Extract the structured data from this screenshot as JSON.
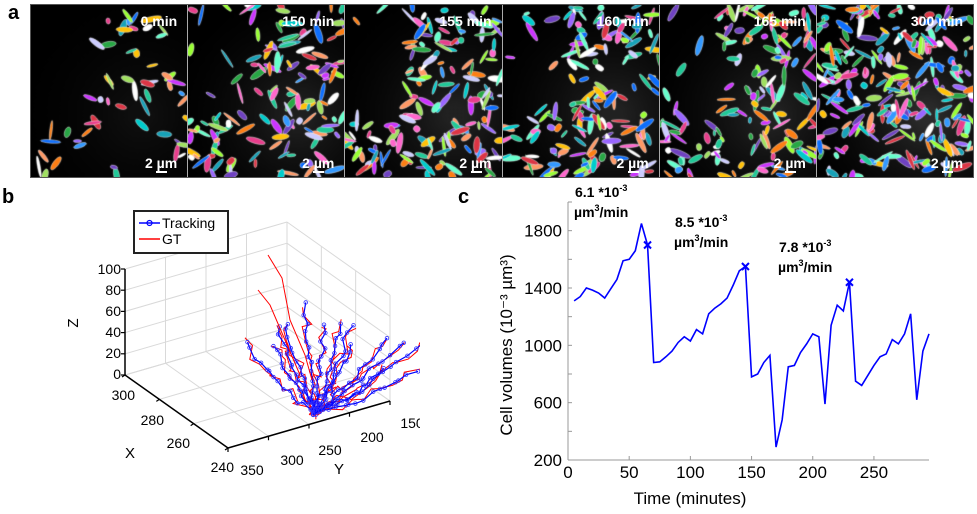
{
  "panels": {
    "a": {
      "letter": "a"
    },
    "b": {
      "letter": "b"
    },
    "c": {
      "letter": "c"
    }
  },
  "frames": [
    {
      "time": "0 min",
      "scale": "2 µm",
      "density": 0.35
    },
    {
      "time": "150 min",
      "scale": "2 µm",
      "density": 0.75
    },
    {
      "time": "155 min",
      "scale": "2 µm",
      "density": 0.78
    },
    {
      "time": "160 min",
      "scale": "2 µm",
      "density": 0.8
    },
    {
      "time": "165 min",
      "scale": "2 µm",
      "density": 0.8
    },
    {
      "time": "300 min",
      "scale": "2 µm",
      "density": 1.0
    }
  ],
  "tracking_plot": {
    "legend": [
      {
        "label": "Tracking",
        "color": "#0000ff",
        "marker": "circle"
      },
      {
        "label": "GT",
        "color": "#ff0000",
        "marker": "none"
      }
    ],
    "z_label": "Z",
    "x_label": "X",
    "y_label": "Y",
    "z_ticks": [
      "100",
      "80",
      "60",
      "40",
      "20",
      "0"
    ],
    "x_ticks": [
      "300",
      "280",
      "260",
      "240"
    ],
    "y_ticks": [
      "350",
      "300",
      "250",
      "200",
      "150"
    ]
  },
  "chart_data": {
    "type": "line",
    "title": "",
    "xlabel": "Time (minutes)",
    "ylabel": "Cell volumes (10⁻³ µm³)",
    "xlim": [
      0,
      295
    ],
    "ylim": [
      200,
      2000
    ],
    "xticks": [
      0,
      50,
      100,
      150,
      200,
      250
    ],
    "yticks": [
      200,
      600,
      1000,
      1400,
      1800
    ],
    "grid": false,
    "color": "#0000ff",
    "series": [
      {
        "name": "Cell volume",
        "x": [
          5,
          10,
          15,
          20,
          25,
          30,
          35,
          40,
          45,
          50,
          55,
          60,
          65,
          70,
          75,
          80,
          85,
          90,
          95,
          100,
          105,
          110,
          115,
          120,
          125,
          130,
          135,
          140,
          145,
          150,
          155,
          160,
          165,
          170,
          175,
          180,
          185,
          190,
          195,
          200,
          205,
          210,
          215,
          220,
          225,
          230,
          235,
          240,
          245,
          250,
          255,
          260,
          265,
          270,
          275,
          280,
          285,
          290,
          295
        ],
        "values": [
          1310,
          1340,
          1400,
          1385,
          1365,
          1330,
          1395,
          1460,
          1590,
          1600,
          1660,
          1850,
          1700,
          880,
          885,
          920,
          960,
          1020,
          1060,
          1030,
          1110,
          1080,
          1220,
          1260,
          1290,
          1330,
          1420,
          1520,
          1550,
          780,
          800,
          880,
          930,
          290,
          480,
          850,
          860,
          950,
          1010,
          1080,
          1060,
          590,
          1140,
          1280,
          1240,
          1440,
          750,
          720,
          790,
          860,
          920,
          940,
          1040,
          1010,
          1080,
          1220,
          620,
          960,
          1080
        ]
      }
    ],
    "markers": [
      {
        "x": 65,
        "y": 1700,
        "symbol": "x"
      },
      {
        "x": 145,
        "y": 1550,
        "symbol": "x"
      },
      {
        "x": 230,
        "y": 1440,
        "symbol": "x"
      }
    ],
    "annotations": [
      {
        "line1": "6.1 *10",
        "sup1": "-3",
        "line2a": "µm",
        "sup2": "3",
        "line2b": "/min"
      },
      {
        "line1": "8.5 *10",
        "sup1": "-3",
        "line2a": "µm",
        "sup2": "3",
        "line2b": "/min"
      },
      {
        "line1": "7.8 *10",
        "sup1": "-3",
        "line2a": "µm",
        "sup2": "3",
        "line2b": "/min"
      }
    ]
  }
}
